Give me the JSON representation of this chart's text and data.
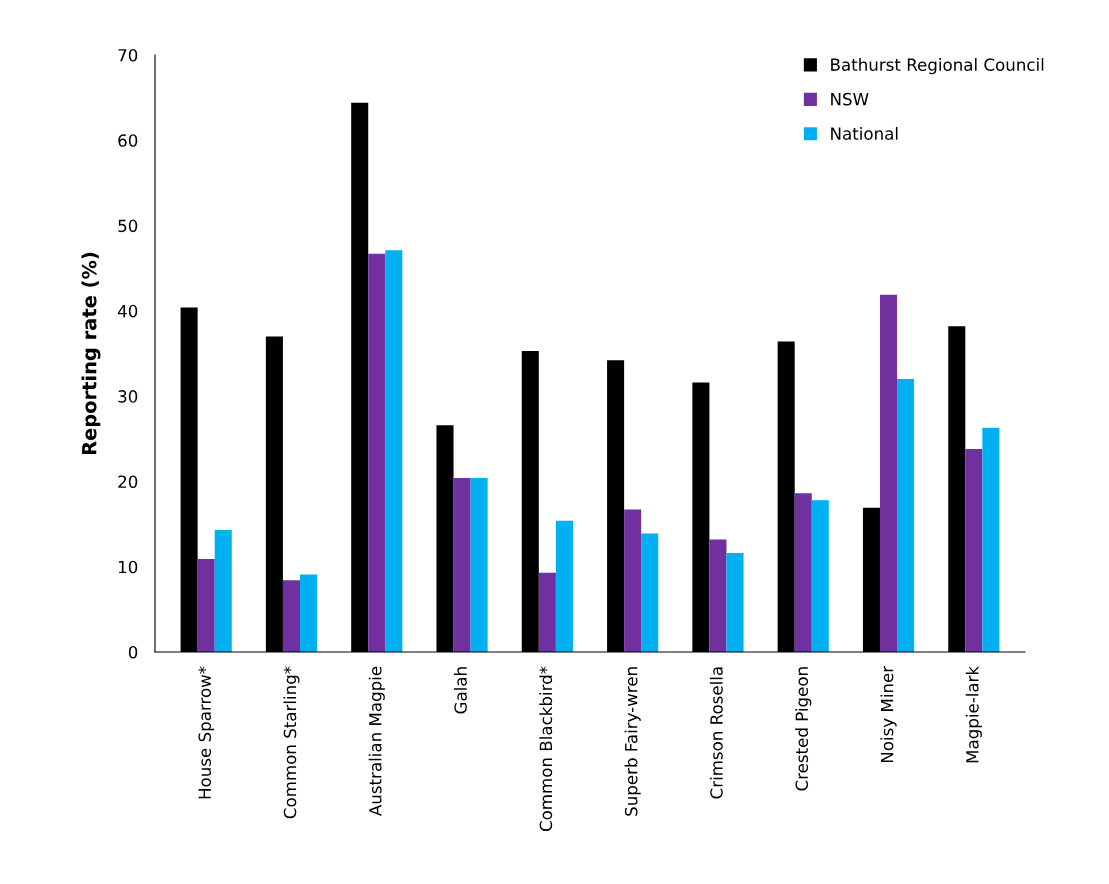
{
  "chart_data": {
    "type": "bar",
    "ylabel": "Reporting rate (%)",
    "categories": [
      "House Sparrow*",
      "Common Starling*",
      "Australian Magpie",
      "Galah",
      "Common Blackbird*",
      "Superb Fairy-wren",
      "Crimson Rosella",
      "Crested Pigeon",
      "Noisy Miner",
      "Magpie-lark"
    ],
    "series": [
      {
        "name": "Bathurst Regional Council",
        "color": "#000000",
        "values": [
          40.4,
          37.0,
          64.4,
          26.6,
          35.3,
          34.2,
          31.6,
          36.4,
          16.9,
          38.2
        ]
      },
      {
        "name": "NSW",
        "color": "#7030a0",
        "values": [
          10.9,
          8.4,
          46.7,
          20.4,
          9.3,
          16.7,
          13.2,
          18.6,
          41.9,
          23.8
        ]
      },
      {
        "name": "National",
        "color": "#00b0f0",
        "values": [
          14.3,
          9.1,
          47.1,
          20.4,
          15.4,
          13.9,
          11.6,
          17.8,
          32.0,
          26.3
        ]
      }
    ],
    "ylim": [
      0,
      70
    ],
    "yticks": [
      0,
      10,
      20,
      30,
      40,
      50,
      60,
      70
    ],
    "grid": false,
    "legend": "top right"
  }
}
